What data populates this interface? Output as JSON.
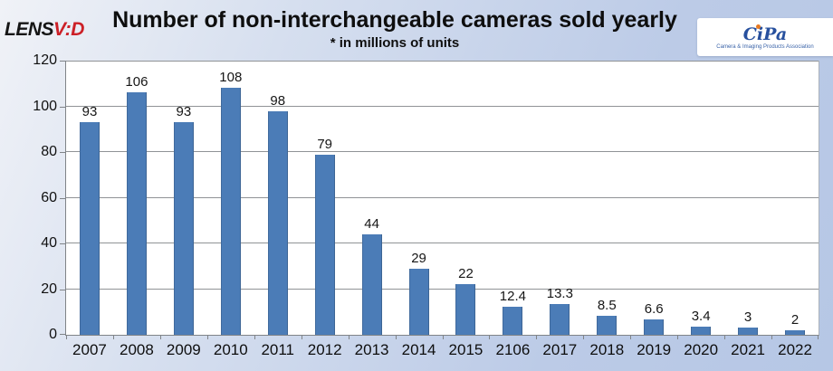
{
  "header": {
    "brand": {
      "black": "LENS",
      "red": "V:D"
    },
    "title": "Number of non-interchangeable cameras sold yearly",
    "subtitle": "* in millions of units",
    "cipa": {
      "text": "CiPa",
      "tagline": "Camera & Imaging Products Association"
    }
  },
  "chart_data": {
    "type": "bar",
    "title": "Number of non-interchangeable cameras sold yearly",
    "subtitle": "* in millions of units",
    "categories": [
      "2007",
      "2008",
      "2009",
      "2010",
      "2011",
      "2012",
      "2013",
      "2014",
      "2015",
      "2106",
      "2017",
      "2018",
      "2019",
      "2020",
      "2021",
      "2022"
    ],
    "values": [
      93,
      106,
      93,
      108,
      98,
      79,
      44,
      29,
      22,
      12.4,
      13.3,
      8.5,
      6.6,
      3.4,
      3,
      2
    ],
    "xlabel": "",
    "ylabel": "",
    "ylim": [
      0,
      120
    ],
    "yticks": [
      0,
      20,
      40,
      60,
      80,
      100,
      120
    ],
    "grid": true,
    "legend": "none",
    "bar_color": "#4b7cb7",
    "gridline_color": "#909396",
    "plot_background": "#ffffff"
  }
}
